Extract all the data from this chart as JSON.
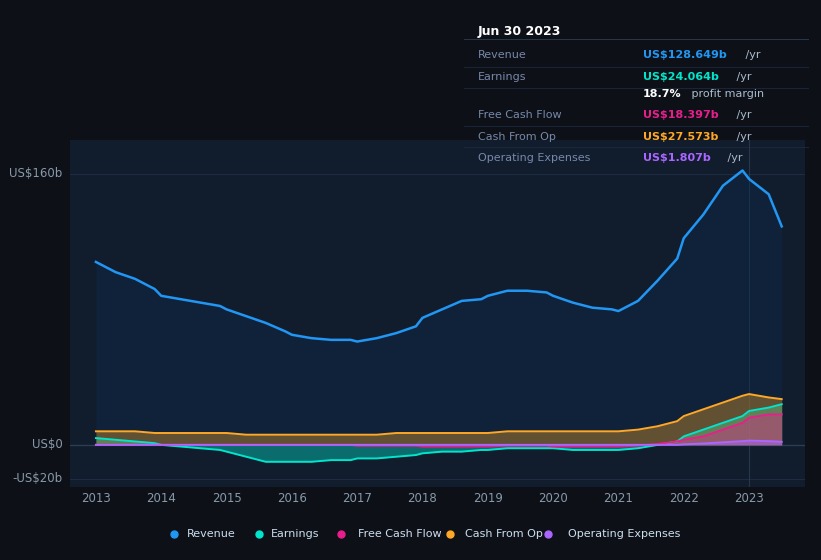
{
  "bg_color": "#0d1117",
  "plot_bg_color": "#111c2d",
  "grid_color": "#1e2d45",
  "ylabel_text": "US$160b",
  "y0_text": "US$0",
  "ym_text": "-US$20b",
  "ylim": [
    -25,
    180
  ],
  "xlim": [
    2012.6,
    2023.85
  ],
  "xticks": [
    2013,
    2014,
    2015,
    2016,
    2017,
    2018,
    2019,
    2020,
    2021,
    2022,
    2023
  ],
  "legend_items": [
    "Revenue",
    "Earnings",
    "Free Cash Flow",
    "Cash From Op",
    "Operating Expenses"
  ],
  "legend_colors": [
    "#2196f3",
    "#00e5cc",
    "#e91e8c",
    "#ffa726",
    "#aa66ff"
  ],
  "info_date": "Jun 30 2023",
  "years": [
    2013.0,
    2013.3,
    2013.6,
    2013.9,
    2014.0,
    2014.3,
    2014.6,
    2014.9,
    2015.0,
    2015.3,
    2015.6,
    2015.9,
    2016.0,
    2016.3,
    2016.6,
    2016.9,
    2017.0,
    2017.3,
    2017.6,
    2017.9,
    2018.0,
    2018.3,
    2018.6,
    2018.9,
    2019.0,
    2019.3,
    2019.6,
    2019.9,
    2020.0,
    2020.3,
    2020.6,
    2020.9,
    2021.0,
    2021.3,
    2021.6,
    2021.9,
    2022.0,
    2022.3,
    2022.6,
    2022.9,
    2023.0,
    2023.3,
    2023.5
  ],
  "revenue": [
    108,
    102,
    98,
    92,
    88,
    86,
    84,
    82,
    80,
    76,
    72,
    67,
    65,
    63,
    62,
    62,
    61,
    63,
    66,
    70,
    75,
    80,
    85,
    86,
    88,
    91,
    91,
    90,
    88,
    84,
    81,
    80,
    79,
    85,
    97,
    110,
    122,
    136,
    153,
    162,
    157,
    148,
    129
  ],
  "earnings": [
    4,
    3,
    2,
    1,
    0,
    -1,
    -2,
    -3,
    -4,
    -7,
    -10,
    -10,
    -10,
    -10,
    -9,
    -9,
    -8,
    -8,
    -7,
    -6,
    -5,
    -4,
    -4,
    -3,
    -3,
    -2,
    -2,
    -2,
    -2,
    -3,
    -3,
    -3,
    -3,
    -2,
    0,
    2,
    5,
    9,
    13,
    17,
    20,
    22,
    24
  ],
  "free_cash_flow": [
    0,
    0,
    0,
    0,
    0,
    0,
    0,
    0,
    0,
    0,
    0,
    0,
    0,
    0,
    0,
    0,
    -0.5,
    -0.5,
    -0.5,
    -0.5,
    -1,
    -1,
    -1,
    -1,
    -1,
    -0.5,
    -0.5,
    -0.5,
    -1,
    -1,
    -1,
    -1,
    -1,
    -0.5,
    0.5,
    2,
    3,
    5,
    9,
    13,
    16,
    18,
    18
  ],
  "cash_from_op": [
    8,
    8,
    8,
    7,
    7,
    7,
    7,
    7,
    7,
    6,
    6,
    6,
    6,
    6,
    6,
    6,
    6,
    6,
    7,
    7,
    7,
    7,
    7,
    7,
    7,
    8,
    8,
    8,
    8,
    8,
    8,
    8,
    8,
    9,
    11,
    14,
    17,
    21,
    25,
    29,
    30,
    28,
    27
  ],
  "operating_expenses": [
    0,
    0,
    0,
    0,
    0,
    0,
    0,
    0,
    0,
    0,
    0,
    0,
    0,
    0,
    0,
    0,
    0,
    0,
    0,
    0,
    0,
    0,
    0,
    0,
    0,
    0,
    0,
    0,
    0,
    0,
    0,
    0,
    0,
    0,
    0,
    0,
    0.3,
    0.8,
    1.5,
    2.2,
    2.5,
    2.2,
    1.8
  ]
}
